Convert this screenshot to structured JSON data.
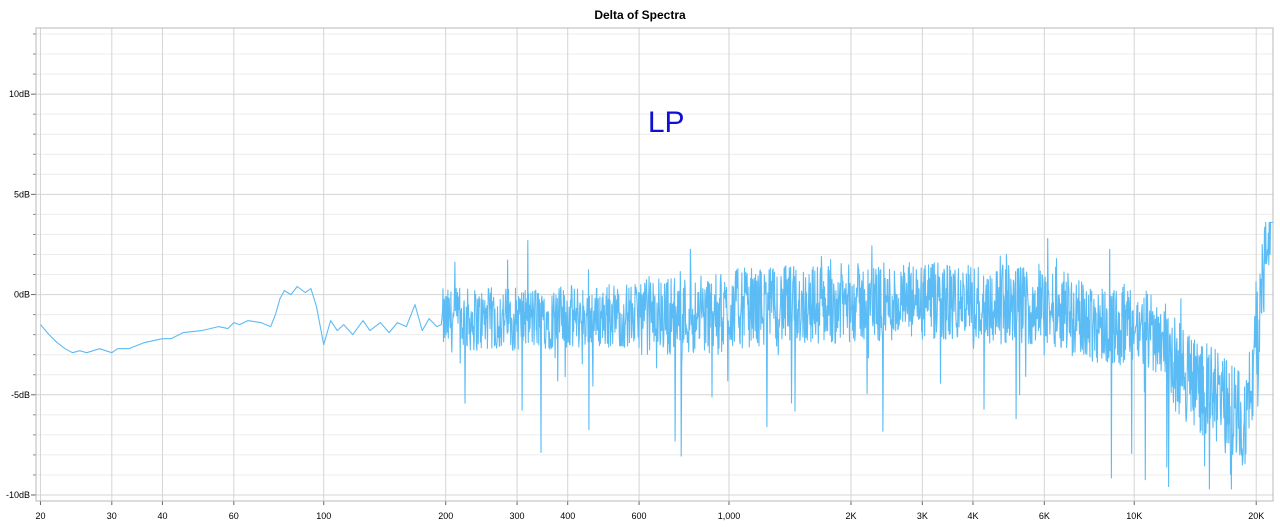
{
  "chart_data": {
    "type": "line",
    "title": "Delta of Spectra",
    "xlabel": "",
    "ylabel": "",
    "x_scale": "log",
    "xlim": [
      19.5,
      22000
    ],
    "ylim": [
      -10.3,
      13.3
    ],
    "x_ticks": [
      {
        "value": 20,
        "label": "20"
      },
      {
        "value": 30,
        "label": "30"
      },
      {
        "value": 40,
        "label": "40"
      },
      {
        "value": 60,
        "label": "60"
      },
      {
        "value": 100,
        "label": "100"
      },
      {
        "value": 200,
        "label": "200"
      },
      {
        "value": 300,
        "label": "300"
      },
      {
        "value": 400,
        "label": "400"
      },
      {
        "value": 600,
        "label": "600"
      },
      {
        "value": 1000,
        "label": "1,000"
      },
      {
        "value": 2000,
        "label": "2K"
      },
      {
        "value": 3000,
        "label": "3K"
      },
      {
        "value": 4000,
        "label": "4K"
      },
      {
        "value": 6000,
        "label": "6K"
      },
      {
        "value": 10000,
        "label": "10K"
      },
      {
        "value": 20000,
        "label": "20K"
      }
    ],
    "y_ticks": [
      {
        "value": 10,
        "label": "10dB"
      },
      {
        "value": 5,
        "label": "5dB"
      },
      {
        "value": 0,
        "label": "0dB"
      },
      {
        "value": -5,
        "label": "-5dB"
      },
      {
        "value": -10,
        "label": "-10dB"
      }
    ],
    "grid": true,
    "legend": "none",
    "annotation": {
      "text": "LP",
      "x": 700,
      "y": 8.6
    },
    "colors": {
      "series": "#5bbcf5",
      "annotation": "#1010d0",
      "grid_major": "#d4d4d4",
      "grid_minor": "#ececec"
    },
    "series": [
      {
        "x": [
          20,
          21,
          22,
          23,
          24,
          25,
          26,
          28,
          30,
          31,
          33,
          36,
          40,
          42,
          45,
          50,
          55,
          58,
          60,
          62,
          65,
          70,
          74,
          76,
          78,
          80,
          83,
          86,
          90,
          93,
          96,
          100,
          104,
          108,
          112,
          118,
          125,
          130,
          138,
          145,
          152,
          160,
          168,
          175,
          182,
          190,
          195
        ],
        "y": [
          -1.5,
          -2.0,
          -2.4,
          -2.7,
          -2.9,
          -2.8,
          -2.9,
          -2.7,
          -2.9,
          -2.7,
          -2.7,
          -2.4,
          -2.2,
          -2.2,
          -1.9,
          -1.8,
          -1.6,
          -1.7,
          -1.4,
          -1.5,
          -1.3,
          -1.4,
          -1.6,
          -1.0,
          -0.2,
          0.2,
          0.0,
          0.4,
          0.1,
          0.3,
          -0.6,
          -2.5,
          -1.3,
          -1.8,
          -1.5,
          -2.0,
          -1.3,
          -1.8,
          -1.4,
          -1.9,
          -1.4,
          -1.6,
          -0.5,
          -1.8,
          -1.2,
          -1.6,
          -1.5
        ]
      }
    ]
  }
}
